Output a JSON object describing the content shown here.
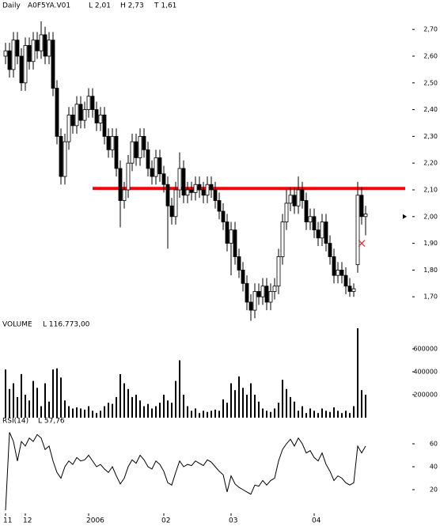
{
  "chart_data": [
    {
      "type": "candlestick",
      "title": "Daily",
      "symbol": "A0F5YA.V01",
      "stats": [
        "L 2,01",
        "H 2,73",
        "T 1,61"
      ],
      "xlim": [
        -1.4,
        102.6
      ],
      "ylim": [
        1.6,
        2.81
      ],
      "xticks": [
        {
          "value": 0,
          "label": "11"
        },
        {
          "value": 5,
          "label": "12"
        },
        {
          "value": 21,
          "label": "2006"
        },
        {
          "value": 40,
          "label": "02"
        },
        {
          "value": 57,
          "label": "03"
        },
        {
          "value": 78,
          "label": "04"
        }
      ],
      "yticks": [
        {
          "value": 1.7,
          "label": "1,70"
        },
        {
          "value": 1.8,
          "label": "1,80"
        },
        {
          "value": 1.9,
          "label": "1,90"
        },
        {
          "value": 2.0,
          "label": "2,00"
        },
        {
          "value": 2.1,
          "label": "2,10"
        },
        {
          "value": 2.2,
          "label": "2,20"
        },
        {
          "value": 2.3,
          "label": "2,30"
        },
        {
          "value": 2.4,
          "label": "2,40"
        },
        {
          "value": 2.5,
          "label": "2,50"
        },
        {
          "value": 2.6,
          "label": "2,60"
        },
        {
          "value": 2.7,
          "label": "2,70"
        }
      ],
      "up_color": "#ffffff",
      "down_color": "#000000",
      "open": [
        2.6,
        2.62,
        2.55,
        2.66,
        2.6,
        2.5,
        2.64,
        2.58,
        2.66,
        2.62,
        2.68,
        2.6,
        2.66,
        2.48,
        2.3,
        2.15,
        2.28,
        2.38,
        2.34,
        2.42,
        2.36,
        2.4,
        2.45,
        2.4,
        2.35,
        2.38,
        2.3,
        2.25,
        2.3,
        2.18,
        2.06,
        2.1,
        2.2,
        2.28,
        2.22,
        2.3,
        2.25,
        2.18,
        2.15,
        2.22,
        2.16,
        2.12,
        2.04,
        2.0,
        2.1,
        2.18,
        2.08,
        2.1,
        2.09,
        2.12,
        2.1,
        2.08,
        2.12,
        2.1,
        2.06,
        2.02,
        1.98,
        1.9,
        1.95,
        1.85,
        1.8,
        1.75,
        1.68,
        1.65,
        1.72,
        1.7,
        1.74,
        1.68,
        1.72,
        1.74,
        1.85,
        1.98,
        2.05,
        2.08,
        2.04,
        2.1,
        2.06,
        1.98,
        2.0,
        1.95,
        1.92,
        1.98,
        1.9,
        1.85,
        1.78,
        1.8,
        1.78,
        1.74,
        1.72,
        1.82,
        2.08,
        2.0
      ],
      "high": [
        2.65,
        2.65,
        2.69,
        2.69,
        2.63,
        2.67,
        2.67,
        2.69,
        2.69,
        2.73,
        2.71,
        2.69,
        2.69,
        2.51,
        2.33,
        2.31,
        2.41,
        2.41,
        2.45,
        2.45,
        2.43,
        2.48,
        2.48,
        2.43,
        2.41,
        2.41,
        2.33,
        2.33,
        2.33,
        2.21,
        2.13,
        2.23,
        2.31,
        2.31,
        2.33,
        2.33,
        2.28,
        2.21,
        2.25,
        2.25,
        2.19,
        2.15,
        2.07,
        2.13,
        2.24,
        2.21,
        2.13,
        2.13,
        2.15,
        2.15,
        2.13,
        2.15,
        2.15,
        2.13,
        2.09,
        2.05,
        2.01,
        1.98,
        1.98,
        1.88,
        1.83,
        1.78,
        1.71,
        1.75,
        1.75,
        1.77,
        1.77,
        1.75,
        1.77,
        1.88,
        2.01,
        2.1,
        2.11,
        2.11,
        2.15,
        2.13,
        2.09,
        2.03,
        2.03,
        1.98,
        2.01,
        2.01,
        1.93,
        1.88,
        1.83,
        1.83,
        1.81,
        1.77,
        1.75,
        2.13,
        2.11,
        2.04
      ],
      "low": [
        2.57,
        2.52,
        2.52,
        2.57,
        2.47,
        2.47,
        2.55,
        2.55,
        2.59,
        2.59,
        2.57,
        2.57,
        2.45,
        2.27,
        2.12,
        2.12,
        2.25,
        2.31,
        2.31,
        2.33,
        2.33,
        2.37,
        2.37,
        2.32,
        2.32,
        2.27,
        2.22,
        2.22,
        2.15,
        1.96,
        2.03,
        2.07,
        2.17,
        2.19,
        2.19,
        2.22,
        2.15,
        2.12,
        2.12,
        2.13,
        2.09,
        1.88,
        1.97,
        1.97,
        2.07,
        2.05,
        2.05,
        2.06,
        2.06,
        2.07,
        2.05,
        2.05,
        2.07,
        2.03,
        1.99,
        1.95,
        1.87,
        1.78,
        1.82,
        1.77,
        1.72,
        1.65,
        1.61,
        1.62,
        1.67,
        1.67,
        1.65,
        1.65,
        1.69,
        1.71,
        1.82,
        1.95,
        2.02,
        2.01,
        2.01,
        2.03,
        1.95,
        1.95,
        1.92,
        1.89,
        1.89,
        1.87,
        1.82,
        1.75,
        1.75,
        1.75,
        1.71,
        1.7,
        1.7,
        1.79,
        1.97,
        1.93
      ],
      "close": [
        2.62,
        2.55,
        2.66,
        2.6,
        2.5,
        2.64,
        2.58,
        2.66,
        2.62,
        2.68,
        2.6,
        2.66,
        2.48,
        2.3,
        2.15,
        2.28,
        2.38,
        2.34,
        2.42,
        2.36,
        2.4,
        2.45,
        2.4,
        2.35,
        2.38,
        2.3,
        2.25,
        2.3,
        2.18,
        2.06,
        2.1,
        2.2,
        2.28,
        2.22,
        2.3,
        2.25,
        2.18,
        2.15,
        2.22,
        2.16,
        2.12,
        2.04,
        2.0,
        2.1,
        2.18,
        2.08,
        2.1,
        2.09,
        2.12,
        2.1,
        2.08,
        2.12,
        2.1,
        2.06,
        2.02,
        1.98,
        1.9,
        1.95,
        1.85,
        1.8,
        1.75,
        1.68,
        1.65,
        1.72,
        1.7,
        1.74,
        1.68,
        1.72,
        1.74,
        1.85,
        1.98,
        2.05,
        2.08,
        2.04,
        2.1,
        2.06,
        1.98,
        2.0,
        1.95,
        1.92,
        1.98,
        1.9,
        1.85,
        1.78,
        1.8,
        1.78,
        1.74,
        1.72,
        1.73,
        2.08,
        2.0,
        2.01
      ],
      "hline": {
        "value": 2.105,
        "from": 22,
        "to": 101,
        "color": "#ff0000"
      },
      "marker": {
        "x": 90,
        "y": 1.9,
        "color": "#e03030"
      },
      "pointer": 2.0
    },
    {
      "type": "bar",
      "title": "VOLUME",
      "stats": [
        "L 116.773,00"
      ],
      "color": "#000000",
      "ylim": [
        0,
        800000
      ],
      "yticks": [
        200000,
        400000,
        600000
      ],
      "values": [
        420000,
        250000,
        300000,
        180000,
        380000,
        200000,
        150000,
        320000,
        260000,
        100000,
        300000,
        140000,
        420000,
        430000,
        350000,
        150000,
        100000,
        80000,
        90000,
        80000,
        70000,
        100000,
        60000,
        40000,
        60000,
        100000,
        130000,
        120000,
        180000,
        380000,
        300000,
        250000,
        180000,
        200000,
        150000,
        100000,
        120000,
        80000,
        100000,
        130000,
        200000,
        150000,
        130000,
        320000,
        500000,
        200000,
        100000,
        60000,
        80000,
        40000,
        60000,
        50000,
        60000,
        70000,
        60000,
        160000,
        130000,
        300000,
        240000,
        360000,
        260000,
        200000,
        300000,
        200000,
        140000,
        80000,
        60000,
        50000,
        80000,
        130000,
        330000,
        250000,
        180000,
        140000,
        60000,
        100000,
        40000,
        80000,
        60000,
        40000,
        80000,
        60000,
        50000,
        90000,
        60000,
        40000,
        60000,
        40000,
        100000,
        780000,
        240000,
        200000
      ]
    },
    {
      "type": "line",
      "title": "RSI(14)",
      "stats": [
        "L 57,76"
      ],
      "color": "#000000",
      "ylim": [
        0,
        100
      ],
      "yticks": [
        20,
        40,
        60
      ],
      "values": [
        2,
        70,
        62,
        45,
        62,
        58,
        65,
        62,
        68,
        65,
        55,
        58,
        45,
        35,
        30,
        40,
        45,
        42,
        48,
        45,
        46,
        50,
        45,
        40,
        42,
        38,
        35,
        40,
        32,
        25,
        30,
        40,
        46,
        43,
        50,
        46,
        40,
        38,
        45,
        42,
        36,
        26,
        24,
        35,
        45,
        40,
        42,
        41,
        45,
        43,
        41,
        46,
        44,
        40,
        36,
        33,
        18,
        32,
        25,
        22,
        20,
        18,
        16,
        24,
        23,
        28,
        24,
        28,
        30,
        45,
        55,
        60,
        64,
        58,
        65,
        60,
        52,
        54,
        48,
        45,
        52,
        42,
        36,
        28,
        32,
        30,
        26,
        24,
        26,
        58,
        52,
        58
      ]
    }
  ]
}
